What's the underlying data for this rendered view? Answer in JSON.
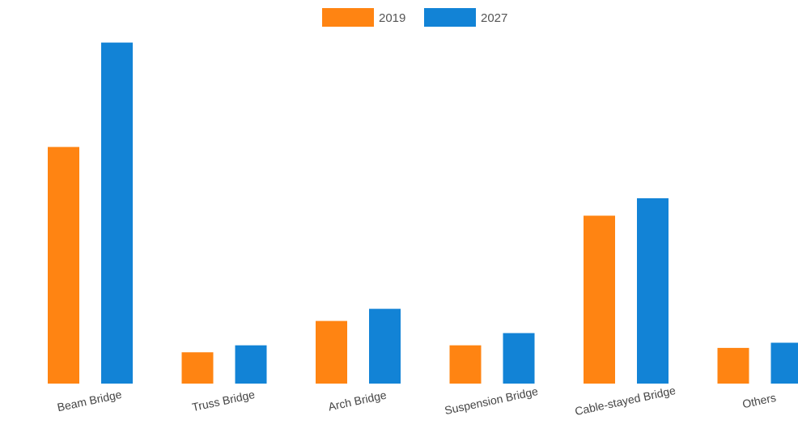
{
  "chart_data": {
    "type": "bar",
    "title": "",
    "xlabel": "",
    "ylabel": "",
    "categories": [
      "Beam Bridge",
      "Truss Bridge",
      "Arch Bridge",
      "Suspension Bridge",
      "Cable-stayed Bridge",
      "Others"
    ],
    "series": [
      {
        "name": "2019",
        "color": "#ff8412",
        "values": [
          27.2,
          3.6,
          7.2,
          4.4,
          19.3,
          4.1
        ]
      },
      {
        "name": "2027",
        "color": "#1283d6",
        "values": [
          39.2,
          4.4,
          8.6,
          5.8,
          21.3,
          4.7
        ]
      }
    ],
    "ylim": [
      0,
      40
    ],
    "grid": false,
    "legend_position": "top-center"
  }
}
